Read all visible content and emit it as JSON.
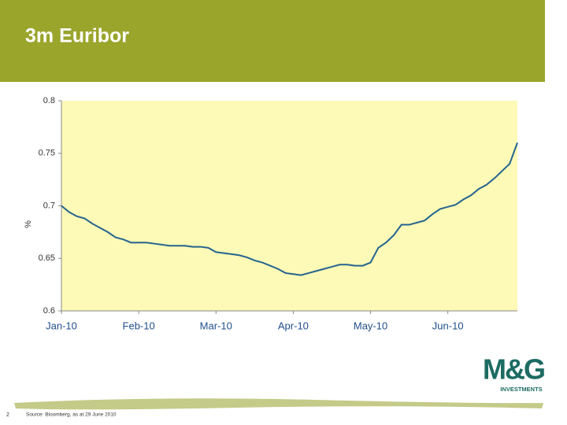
{
  "chart_data": {
    "type": "line",
    "title": "3m Euribor",
    "y_label": "%",
    "values": [
      0.7,
      0.694,
      0.69,
      0.688,
      0.683,
      0.679,
      0.675,
      0.67,
      0.668,
      0.665,
      0.665,
      0.665,
      0.664,
      0.663,
      0.662,
      0.662,
      0.662,
      0.661,
      0.661,
      0.66,
      0.656,
      0.655,
      0.654,
      0.653,
      0.651,
      0.648,
      0.646,
      0.643,
      0.64,
      0.636,
      0.635,
      0.634,
      0.636,
      0.638,
      0.64,
      0.642,
      0.644,
      0.644,
      0.643,
      0.643,
      0.646,
      0.66,
      0.665,
      0.672,
      0.682,
      0.682,
      0.684,
      0.686,
      0.692,
      0.697,
      0.699,
      0.701,
      0.706,
      0.71,
      0.716,
      0.72,
      0.726,
      0.733,
      0.74,
      0.76
    ],
    "color": "#24648f",
    "xlim": [
      0,
      59
    ],
    "xticks": [
      {
        "value": 0,
        "label": "Jan-10"
      },
      {
        "value": 10,
        "label": "Feb-10"
      },
      {
        "value": 20,
        "label": "Mar-10"
      },
      {
        "value": 30,
        "label": "Apr-10"
      },
      {
        "value": 40,
        "label": "May-10"
      },
      {
        "value": 50,
        "label": "Jun-10"
      }
    ],
    "ylim": [
      0.6,
      0.8
    ],
    "yticks": [
      0.6,
      0.65,
      0.7,
      0.75,
      0.8
    ],
    "plot_background": "#fdf9b6"
  },
  "slide": {
    "number": "2",
    "source": "Source: Bloomberg, as at 29 June 2010",
    "logo": "M&G",
    "logo_sub": "INVESTMENTS"
  }
}
